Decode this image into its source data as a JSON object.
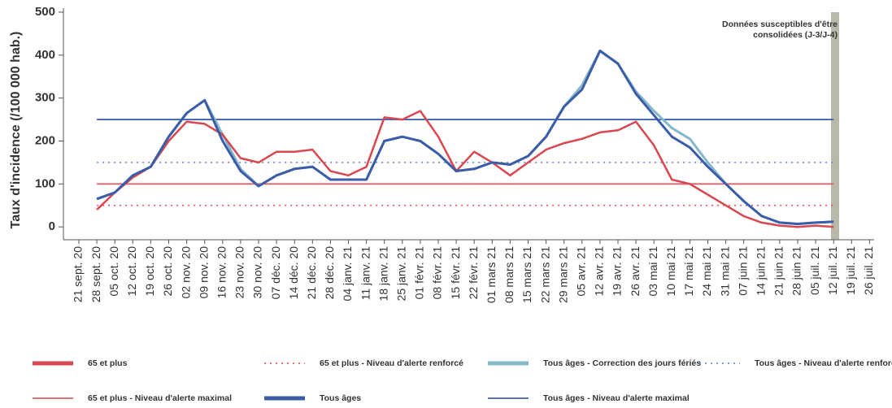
{
  "chart_data": {
    "type": "line",
    "y_label": "Taux d'incidence (/100 000 hab.)",
    "annotation": [
      "Données susceptibles d'être",
      "consolidées (J-3/J-4)"
    ],
    "categories": [
      "21 sept. 20",
      "28 sept. 20",
      "05 oct. 20",
      "12 oct. 20",
      "19 oct. 20",
      "26 oct. 20",
      "02 nov. 20",
      "09 nov. 20",
      "16 nov. 20",
      "23 nov. 20",
      "30 nov. 20",
      "07 déc. 20",
      "14 déc. 20",
      "21 déc. 20",
      "28 déc. 20",
      "04 janv. 21",
      "11 janv. 21",
      "18 janv. 21",
      "25 janv. 21",
      "01 févr. 21",
      "08 févr. 21",
      "15 févr. 21",
      "22 févr. 21",
      "01 mars 21",
      "08 mars 21",
      "15 mars 21",
      "22 mars 21",
      "29 mars 21",
      "05 avr. 21",
      "12 avr. 21",
      "19 avr. 21",
      "26 avr. 21",
      "03 mai 21",
      "10 mai 21",
      "17 mai 21",
      "24 mai 21",
      "31 mai 21",
      "07 juin 21",
      "14 juin 21",
      "21 juin 21",
      "28 juin 21",
      "05 juil. 21",
      "12 juil. 21",
      "19 juil. 21",
      "26 juil. 21"
    ],
    "series": [
      {
        "name": "Tous âges - Correction des jours fériés",
        "color": "#86b8cc",
        "width": 3,
        "values": [
          null,
          65,
          80,
          120,
          140,
          210,
          265,
          295,
          215,
          135,
          95,
          120,
          135,
          140,
          110,
          110,
          110,
          200,
          210,
          200,
          170,
          130,
          135,
          150,
          145,
          165,
          210,
          280,
          330,
          410,
          380,
          315,
          270,
          230,
          205,
          150,
          100,
          60,
          25,
          10,
          7,
          10,
          12,
          null,
          null
        ]
      },
      {
        "name": "65 et plus",
        "color": "#d9474f",
        "width": 2.5,
        "values": [
          null,
          40,
          80,
          115,
          140,
          200,
          245,
          240,
          215,
          160,
          150,
          175,
          175,
          180,
          130,
          120,
          140,
          255,
          250,
          270,
          210,
          130,
          175,
          150,
          120,
          150,
          180,
          195,
          205,
          220,
          225,
          245,
          190,
          110,
          100,
          75,
          50,
          25,
          10,
          3,
          0,
          3,
          0,
          null,
          null
        ]
      },
      {
        "name": "Tous âges",
        "color": "#3b5da8",
        "width": 3,
        "values": [
          null,
          65,
          80,
          120,
          140,
          210,
          265,
          295,
          200,
          130,
          95,
          120,
          135,
          140,
          110,
          110,
          110,
          200,
          210,
          200,
          170,
          130,
          135,
          150,
          145,
          165,
          210,
          280,
          320,
          410,
          380,
          310,
          260,
          210,
          185,
          140,
          100,
          60,
          25,
          10,
          7,
          10,
          12,
          null,
          null
        ]
      }
    ],
    "thresholds": [
      {
        "name": "65 et plus - Niveau d'alerte renforcé",
        "color": "#e0606a",
        "value": 50,
        "dashed": true
      },
      {
        "name": "65 et plus - Niveau d'alerte maximal",
        "color": "#e0606a",
        "value": 100,
        "dashed": false
      },
      {
        "name": "Tous âges - Niveau d'alerte renforcé",
        "color": "#7090c8",
        "value": 150,
        "dashed": true
      },
      {
        "name": "Tous âges - Niveau d'alerte maximal",
        "color": "#4060b0",
        "value": 250,
        "dashed": false
      }
    ],
    "ylim": [
      -30,
      500
    ],
    "yticks": [
      0,
      100,
      200,
      300,
      400,
      500
    ]
  }
}
